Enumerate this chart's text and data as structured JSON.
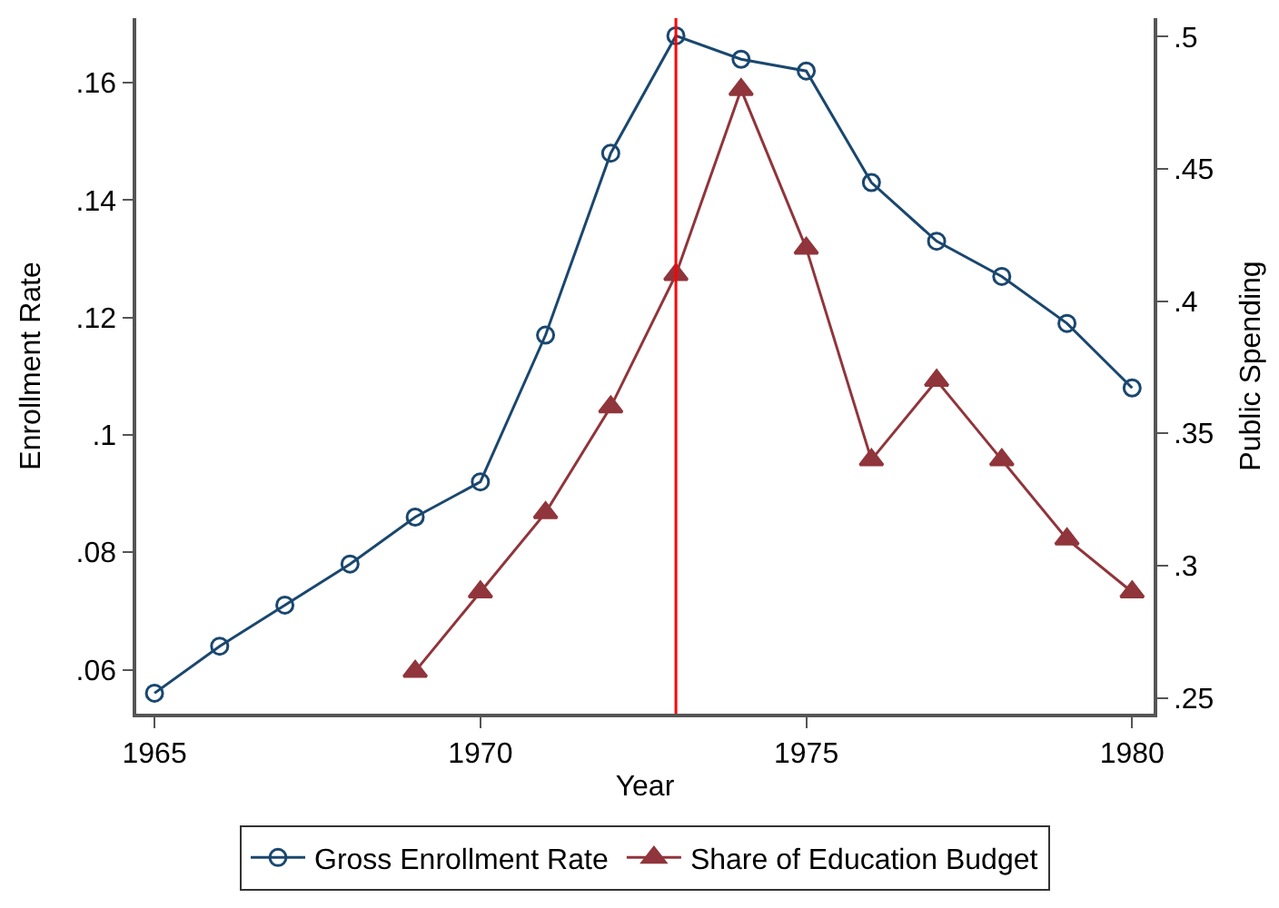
{
  "chart_data": {
    "type": "line",
    "xlabel": "Year",
    "ylabel": "Enrollment Rate",
    "y2label": "Public Spending",
    "x": [
      1965,
      1966,
      1967,
      1968,
      1969,
      1970,
      1971,
      1972,
      1973,
      1974,
      1975,
      1976,
      1977,
      1978,
      1979,
      1980
    ],
    "series": [
      {
        "name": "Gross Enrollment Rate",
        "color": "#1a476f",
        "marker": "circle",
        "values": [
          0.056,
          0.064,
          0.071,
          0.078,
          0.086,
          0.092,
          0.117,
          0.148,
          0.168,
          0.164,
          0.162,
          0.143,
          0.133,
          0.127,
          0.119,
          0.108
        ]
      },
      {
        "name": "Share of Education Budget",
        "color": "#90353b",
        "marker": "triangle",
        "axis": "y2",
        "values": [
          null,
          null,
          null,
          null,
          0.26,
          0.29,
          0.32,
          0.36,
          0.41,
          0.48,
          0.42,
          0.34,
          0.37,
          0.34,
          0.31,
          0.29
        ]
      }
    ],
    "xlim": [
      1964.72,
      1980.33
    ],
    "xticks": [
      1965,
      1970,
      1975,
      1980
    ],
    "ylim": [
      0.0525,
      0.171
    ],
    "yticks": [
      {
        "value": 0.06,
        "label": ".06"
      },
      {
        "value": 0.08,
        "label": ".08"
      },
      {
        "value": 0.1,
        "label": ".1"
      },
      {
        "value": 0.12,
        "label": ".12"
      },
      {
        "value": 0.14,
        "label": ".14"
      },
      {
        "value": 0.16,
        "label": ".16"
      }
    ],
    "y2lim": [
      0.244,
      0.507
    ],
    "y2ticks": [
      {
        "value": 0.25,
        "label": ".25"
      },
      {
        "value": 0.3,
        "label": ".3"
      },
      {
        "value": 0.35,
        "label": ".35"
      },
      {
        "value": 0.4,
        "label": ".4"
      },
      {
        "value": 0.45,
        "label": ".45"
      },
      {
        "value": 0.5,
        "label": ".5"
      }
    ],
    "ref_lines": [
      {
        "axis": "x",
        "value": 1973,
        "color": "#ff0000"
      }
    ],
    "grid": false,
    "legend": "bottom"
  }
}
